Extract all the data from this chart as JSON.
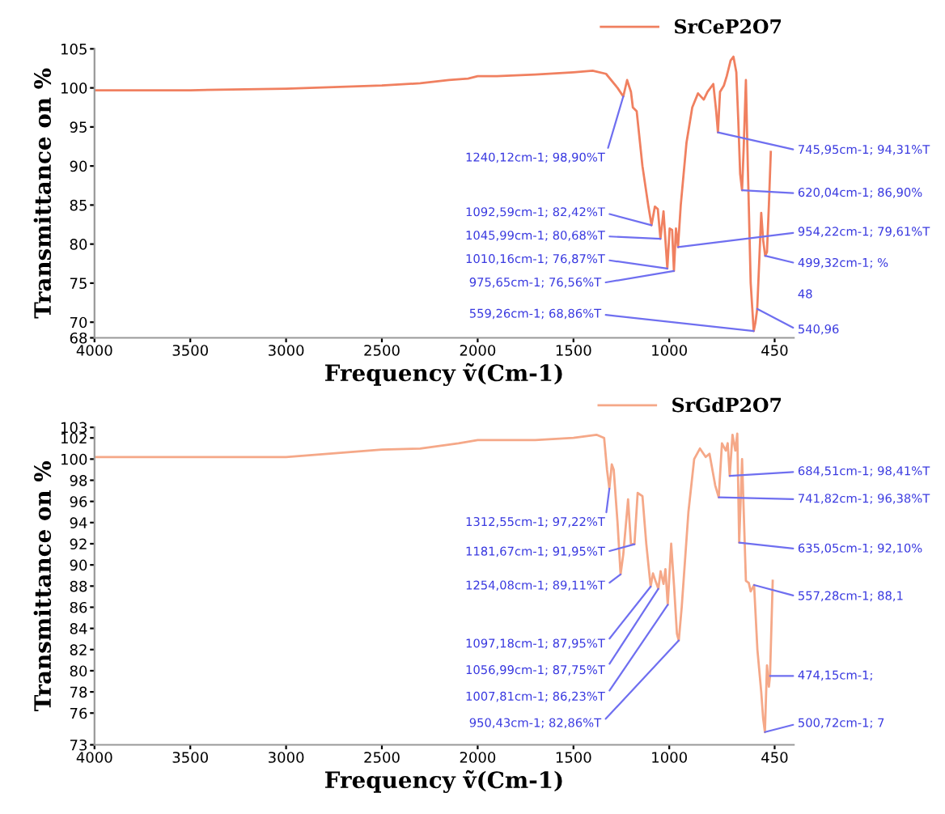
{
  "chart_data": [
    {
      "type": "line",
      "xlabel": "Frequency ṽ(Cm-1)",
      "ylabel": "Transmittance on %",
      "xlim": [
        4000,
        350
      ],
      "xticks": [
        4000,
        3500,
        3000,
        2500,
        2000,
        1500,
        1000,
        450
      ],
      "ylim": [
        68,
        105
      ],
      "yticks": [
        68,
        70,
        75,
        80,
        85,
        90,
        95,
        100,
        105
      ],
      "legend": "top right",
      "series": [
        {
          "name": "SrCeP2O7",
          "color": "#f08060",
          "x": [
            4000,
            3500,
            3000,
            2500,
            2300,
            2150,
            2050,
            2000,
            1900,
            1700,
            1500,
            1400,
            1330,
            1270,
            1240.12,
            1220,
            1200,
            1190,
            1170,
            1140,
            1110,
            1092.59,
            1075,
            1060,
            1045.99,
            1030,
            1010.16,
            998,
            985,
            975.65,
            965,
            954.22,
            940,
            910,
            880,
            850,
            820,
            800,
            770,
            755,
            745.95,
            735,
            715,
            700,
            680,
            665,
            650,
            640,
            630,
            620.04,
            612,
            600,
            590,
            575,
            559.26,
            550,
            540.96,
            530,
            520,
            510,
            499.32,
            490,
            480,
            470
          ],
          "values": [
            99.7,
            99.7,
            99.9,
            100.3,
            100.6,
            101.0,
            101.2,
            101.5,
            101.5,
            101.7,
            102.0,
            102.2,
            101.8,
            100.0,
            98.9,
            101.0,
            99.5,
            97.5,
            97.0,
            90,
            85,
            82.42,
            84.8,
            84.5,
            80.68,
            84.2,
            76.87,
            82,
            81.8,
            76.56,
            82,
            79.61,
            85,
            93,
            97.5,
            99.3,
            98.5,
            99.5,
            100.5,
            97,
            94.31,
            99.5,
            100.3,
            101.5,
            103.5,
            104,
            102,
            96,
            89,
            86.9,
            92,
            101.0,
            90,
            75,
            68.86,
            70,
            71.7,
            78,
            84,
            80.5,
            78.5,
            79,
            85,
            91.8
          ]
        }
      ],
      "annotations": [
        {
          "text": "1240,12cm-1; 98,90%T",
          "x": 1240.12,
          "y": 98.9
        },
        {
          "text": "1092,59cm-1; 82,42%T",
          "x": 1092.59,
          "y": 82.42
        },
        {
          "text": "1045,99cm-1; 80,68%T",
          "x": 1045.99,
          "y": 80.68
        },
        {
          "text": "1010,16cm-1; 76,87%T",
          "x": 1010.16,
          "y": 76.87
        },
        {
          "text": "975,65cm-1; 76,56%T",
          "x": 975.65,
          "y": 76.56
        },
        {
          "text": "954,22cm-1; 79,61%T",
          "x": 954.22,
          "y": 79.61
        },
        {
          "text": "745,95cm-1; 94,31%T",
          "x": 745.95,
          "y": 94.31
        },
        {
          "text": "620,04cm-1; 86,90%",
          "x": 620.04,
          "y": 86.9
        },
        {
          "text": "499,32cm-1; %",
          "x": 499.32,
          "y": 78.5
        },
        {
          "text": "559,26cm-1; 68,86%T",
          "x": 559.26,
          "y": 68.86
        },
        {
          "text": "540,96",
          "x": 540.96,
          "y": 71.7
        },
        "48"
      ]
    },
    {
      "type": "line",
      "xlabel": "Frequency ṽ(Cm-1)",
      "ylabel": "Transmittance on %",
      "xlim": [
        4000,
        350
      ],
      "xticks": [
        4000,
        3500,
        3000,
        2500,
        2000,
        1500,
        1000,
        450
      ],
      "ylim": [
        73,
        103
      ],
      "yticks": [
        73,
        76,
        78,
        80,
        82,
        84,
        86,
        88,
        90,
        92,
        94,
        96,
        98,
        100,
        102,
        103
      ],
      "legend": "top right",
      "series": [
        {
          "name": "SrGdP2O7",
          "color": "#f5a888",
          "x": [
            4000,
            3500,
            3000,
            2500,
            2300,
            2100,
            2000,
            1700,
            1500,
            1380,
            1340,
            1325,
            1312.55,
            1300,
            1290,
            1270,
            1254.08,
            1240,
            1215,
            1200,
            1181.67,
            1165,
            1140,
            1120,
            1097.18,
            1085,
            1070,
            1056.99,
            1045,
            1030,
            1020,
            1007.81,
            990,
            975,
            960,
            950.43,
            935,
            900,
            870,
            840,
            810,
            790,
            760,
            741.82,
            725,
            705,
            695,
            684.51,
            670,
            655,
            645,
            635.05,
            620,
            600,
            585,
            575,
            557.28,
            540,
            520,
            510,
            500.72,
            490,
            480,
            474.15,
            460
          ],
          "values": [
            100.2,
            100.2,
            100.2,
            100.9,
            101.0,
            101.5,
            101.8,
            101.8,
            102.0,
            102.3,
            102.0,
            99,
            97.22,
            99.5,
            99.0,
            94,
            89.11,
            91,
            96.2,
            92,
            91.95,
            96.8,
            96.5,
            92,
            87.95,
            89.2,
            88.4,
            87.75,
            89.4,
            88.2,
            89.6,
            86.23,
            92,
            88,
            83.5,
            82.86,
            86,
            95,
            100,
            101,
            100.2,
            100.5,
            97.5,
            96.38,
            101.5,
            100.8,
            101.5,
            98.41,
            102.3,
            100.8,
            102.4,
            92.1,
            100,
            88.5,
            88.3,
            87.5,
            88.1,
            82,
            78,
            75.5,
            74.2,
            80.5,
            78.5,
            79.5,
            88.5
          ]
        }
      ],
      "annotations": [
        {
          "text": "1312,55cm-1; 97,22%T",
          "x": 1312.55,
          "y": 97.22
        },
        {
          "text": "1254,08cm-1; 89,11%T",
          "x": 1254.08,
          "y": 89.11
        },
        {
          "text": "1181,67cm-1; 91,95%T",
          "x": 1181.67,
          "y": 91.95
        },
        {
          "text": "1097,18cm-1; 87,95%T",
          "x": 1097.18,
          "y": 87.95
        },
        {
          "text": "1007,81cm-1; 86,23%T",
          "x": 1007.81,
          "y": 86.23
        },
        {
          "text": "1056,99cm-1; 87,75%T",
          "x": 1056.99,
          "y": 87.75
        },
        {
          "text": "950,43cm-1; 82,86%T",
          "x": 950.43,
          "y": 82.86
        },
        {
          "text": "684,51cm-1; 98,41%T",
          "x": 684.51,
          "y": 98.41
        },
        {
          "text": "741,82cm-1; 96,38%T",
          "x": 741.82,
          "y": 96.38
        },
        {
          "text": "635,05cm-1; 92,10%",
          "x": 635.05,
          "y": 92.1
        },
        {
          "text": "557,28cm-1; 88,1",
          "x": 557.28,
          "y": 88.1
        },
        {
          "text": "474,15cm-1;",
          "x": 474.15,
          "y": 79.5
        },
        {
          "text": "500,72cm-1; 7",
          "x": 500.72,
          "y": 74.2
        }
      ]
    }
  ]
}
